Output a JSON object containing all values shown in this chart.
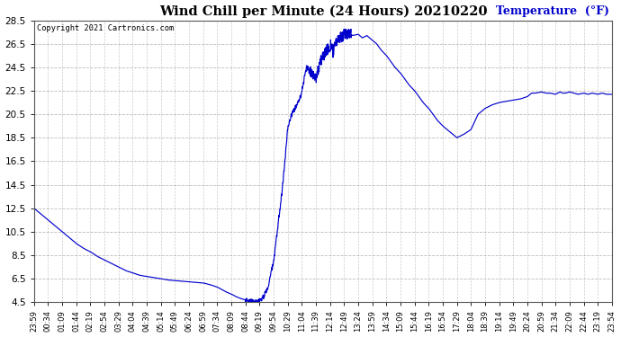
{
  "title": "Wind Chill per Minute (24 Hours) 20210220",
  "ylabel": "Temperature  (°F)",
  "copyright": "Copyright 2021 Cartronics.com",
  "ylabel_color": "#0000cc",
  "line_color": "#0000cc",
  "background_color": "#ffffff",
  "plot_bg_color": "#ffffff",
  "grid_color": "#aaaaaa",
  "ylim": [
    4.5,
    28.5
  ],
  "yticks": [
    4.5,
    6.5,
    8.5,
    10.5,
    12.5,
    14.5,
    16.5,
    18.5,
    20.5,
    22.5,
    24.5,
    26.5,
    28.5
  ],
  "xtick_labels": [
    "23:59",
    "00:34",
    "01:09",
    "01:44",
    "02:19",
    "02:54",
    "03:29",
    "04:04",
    "04:39",
    "05:14",
    "05:49",
    "06:24",
    "06:59",
    "07:34",
    "08:09",
    "08:44",
    "09:19",
    "09:54",
    "10:29",
    "11:04",
    "11:39",
    "12:14",
    "12:49",
    "13:24",
    "13:59",
    "14:34",
    "15:09",
    "15:44",
    "16:19",
    "16:54",
    "17:29",
    "18:04",
    "18:39",
    "19:14",
    "19:49",
    "20:24",
    "20:59",
    "21:34",
    "22:09",
    "22:44",
    "23:19",
    "23:54"
  ],
  "key_t": [
    0,
    0.5,
    1,
    1.5,
    2,
    2.5,
    3,
    3.5,
    4,
    4.5,
    5,
    5.5,
    6,
    6.5,
    7,
    7.5,
    8,
    8.5,
    9,
    9.5,
    10,
    10.5,
    11,
    11.5,
    12,
    12.5,
    13,
    13.3,
    13.6,
    14,
    14.3,
    14.6,
    15,
    15.1,
    15.2,
    15.3,
    15.5,
    15.7,
    16,
    16.3,
    16.6,
    17,
    17.2,
    17.4,
    17.6,
    17.8,
    18,
    18.15,
    18.3,
    18.5,
    18.7,
    18.9,
    19,
    19.1,
    19.2,
    19.35,
    19.5,
    19.7,
    20,
    20.2,
    20.4,
    20.6,
    20.8,
    21,
    21.1,
    21.2,
    21.3,
    21.5,
    21.7,
    22,
    22.3,
    22.6,
    23,
    23.3,
    23.6,
    24,
    24.3,
    24.6,
    25,
    25.3,
    25.6,
    26,
    26.3,
    26.6,
    27,
    27.3,
    27.6,
    28,
    28.3,
    28.6,
    29,
    29.5,
    30,
    30.5,
    31,
    31.5,
    32,
    32.5,
    33,
    33.5,
    34,
    34.5,
    35,
    35.3,
    35.6,
    36,
    36.3,
    36.6,
    37,
    37.3,
    37.5,
    37.7,
    38,
    38.3,
    38.6,
    39,
    39.3,
    39.6,
    40,
    40.3,
    40.6,
    41
  ],
  "key_y": [
    12.5,
    12.0,
    11.5,
    11.0,
    10.5,
    10.0,
    9.5,
    9.1,
    8.8,
    8.4,
    8.1,
    7.8,
    7.5,
    7.2,
    7.0,
    6.8,
    6.7,
    6.6,
    6.5,
    6.4,
    6.35,
    6.3,
    6.25,
    6.2,
    6.15,
    6.0,
    5.8,
    5.6,
    5.4,
    5.2,
    5.0,
    4.85,
    4.7,
    4.65,
    4.62,
    4.6,
    4.58,
    4.6,
    4.65,
    5.0,
    5.8,
    8.0,
    10.0,
    12.0,
    14.0,
    16.5,
    19.5,
    20.0,
    20.5,
    21.0,
    21.5,
    22.0,
    22.5,
    23.0,
    23.8,
    24.5,
    24.3,
    24.0,
    23.5,
    24.5,
    25.2,
    25.6,
    26.0,
    26.3,
    26.5,
    25.8,
    26.2,
    26.8,
    27.0,
    27.3,
    27.4,
    27.2,
    27.3,
    27.0,
    27.2,
    26.8,
    26.5,
    26.0,
    25.5,
    25.0,
    24.5,
    24.0,
    23.5,
    23.0,
    22.5,
    22.0,
    21.5,
    21.0,
    20.5,
    20.0,
    19.5,
    19.0,
    18.5,
    18.8,
    19.2,
    20.5,
    21.0,
    21.3,
    21.5,
    21.6,
    21.7,
    21.8,
    22.0,
    22.3,
    22.3,
    22.4,
    22.3,
    22.3,
    22.2,
    22.4,
    22.3,
    22.3,
    22.4,
    22.3,
    22.2,
    22.3,
    22.2,
    22.3,
    22.2,
    22.3,
    22.2,
    22.2
  ]
}
